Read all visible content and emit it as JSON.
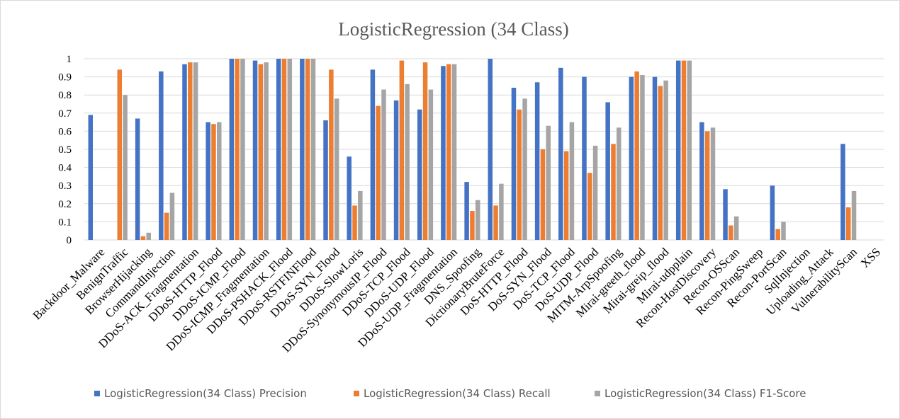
{
  "chart_data": {
    "type": "bar",
    "title": "LogisticRegression (34 Class)",
    "xlabel": "",
    "ylabel": "",
    "ylim": [
      0,
      1
    ],
    "yticks": [
      "0",
      "0.1",
      "0.2",
      "0.3",
      "0.4",
      "0.5",
      "0.6",
      "0.7",
      "0.8",
      "0.9",
      "1"
    ],
    "grid": true,
    "legend_position": "bottom",
    "categories": [
      "Backdoor_Malware",
      "BenignTraffic",
      "BrowserHijacking",
      "CommandInjection",
      "DDoS-ACK_Fragmentation",
      "DDoS-HTTP_Flood",
      "DDoS-ICMP_Flood",
      "DDoS-ICMP_Fragmentation",
      "DDoS-PSHACK_Flood",
      "DDoS-RSTFINFlood",
      "DDoS-SYN_Flood",
      "DDoS-SlowLoris",
      "DDoS-SynonymousIP_Flood",
      "DDoS-TCP_Flood",
      "DDoS-UDP_Flood",
      "DDoS-UDP_Fragmentation",
      "DNS_Spoofing",
      "DictionaryBruteForce",
      "DoS-HTTP_Flood",
      "DoS-SYN_Flood",
      "DoS-TCP_Flood",
      "DoS-UDP_Flood",
      "MITM-ArpSpoofing",
      "Mirai-greeth_flood",
      "Mirai-greip_flood",
      "Mirai-udpplain",
      "Recon-HostDiscovery",
      "Recon-OSScan",
      "Recon-PingSweep",
      "Recon-PortScan",
      "SqlInjection",
      "Uploading_Attack",
      "VulnerabilityScan",
      "XSS"
    ],
    "series": [
      {
        "name": "LogisticRegression(34 Class) Precision",
        "color": "#4472c4",
        "values": [
          0.69,
          0,
          0.67,
          0.93,
          0.97,
          0.65,
          1.0,
          0.99,
          1.0,
          1.0,
          0.66,
          0.46,
          0.94,
          0.77,
          0.72,
          0.96,
          0.32,
          1.0,
          0.84,
          0.87,
          0.95,
          0.9,
          0.76,
          0.9,
          0.9,
          0.99,
          0.65,
          0.28,
          0,
          0.3,
          0,
          0,
          0.53,
          0
        ]
      },
      {
        "name": "LogisticRegression(34 Class) Recall",
        "color": "#ed7d31",
        "values": [
          0,
          0.94,
          0.02,
          0.15,
          0.98,
          0.64,
          1.0,
          0.97,
          1.0,
          1.0,
          0.94,
          0.19,
          0.74,
          0.99,
          0.98,
          0.97,
          0.16,
          0.19,
          0.72,
          0.5,
          0.49,
          0.37,
          0.53,
          0.93,
          0.85,
          0.99,
          0.6,
          0.08,
          0,
          0.06,
          0,
          0,
          0.18,
          0
        ]
      },
      {
        "name": "LogisticRegression(34 Class) F1-Score",
        "color": "#a5a5a5",
        "values": [
          0,
          0.8,
          0.04,
          0.26,
          0.98,
          0.65,
          1.0,
          0.98,
          1.0,
          1.0,
          0.78,
          0.27,
          0.83,
          0.86,
          0.83,
          0.97,
          0.22,
          0.31,
          0.78,
          0.63,
          0.65,
          0.52,
          0.62,
          0.91,
          0.88,
          0.99,
          0.62,
          0.13,
          0,
          0.1,
          0,
          0,
          0.27,
          0
        ]
      }
    ]
  }
}
